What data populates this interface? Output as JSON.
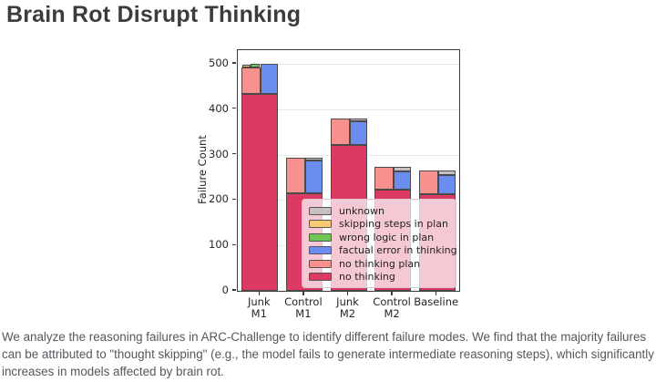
{
  "page": {
    "title": "Brain Rot Disrupt Thinking",
    "caption": "We analyze the reasoning failures in ARC-Challenge to identify different failure modes. We find that the majority failures can be attributed to \"thought skipping\" (e.g., the model fails to generate intermediate reasoning steps), which significantly increases in models affected by brain rot."
  },
  "chart_data": {
    "type": "bar",
    "stacked": true,
    "title": "",
    "xlabel": "",
    "ylabel": "Failure Count",
    "ylim": [
      0,
      530
    ],
    "yticks": [
      0,
      100,
      200,
      300,
      400,
      500
    ],
    "grid": true,
    "legend_position": "inside lower-right",
    "categories": [
      {
        "line1": "Junk",
        "line2": "M1"
      },
      {
        "line1": "Control",
        "line2": "M1"
      },
      {
        "line1": "Junk",
        "line2": "M2"
      },
      {
        "line1": "Control",
        "line2": "M2"
      },
      {
        "line1": "Baseline",
        "line2": ""
      }
    ],
    "series": [
      {
        "name": "no thinking",
        "color": "#dc3a62",
        "values": [
          433,
          215,
          322,
          222,
          212
        ]
      },
      {
        "name": "no thinking plan",
        "color": "#f6918e",
        "values": [
          59,
          78,
          57,
          51,
          53
        ]
      },
      {
        "name": "skipping steps in plan",
        "color": "#f8ca73",
        "values": [
          6,
          0,
          0,
          0,
          0
        ]
      },
      {
        "name": "wrong logic in plan",
        "color": "#70c557",
        "values": [
          8,
          0,
          0,
          0,
          0
        ]
      },
      {
        "name": "factual error in thinking",
        "color": "#6c8df0",
        "values": [
          67,
          72,
          52,
          41,
          43
        ]
      },
      {
        "name": "unknown",
        "color": "#c7bfc1",
        "values": [
          0,
          6,
          5,
          10,
          10
        ]
      }
    ],
    "legend_order": [
      "unknown",
      "skipping steps in plan",
      "wrong logic in plan",
      "factual error in thinking",
      "no thinking plan",
      "no thinking"
    ],
    "notes": "Each category bar: 'no thinking' full-width base; left sub-column stacks plan failures (no thinking plan + skipping steps / wrong logic caps); right sub-column stacks thinking failures (factual error + unknown cap)."
  }
}
